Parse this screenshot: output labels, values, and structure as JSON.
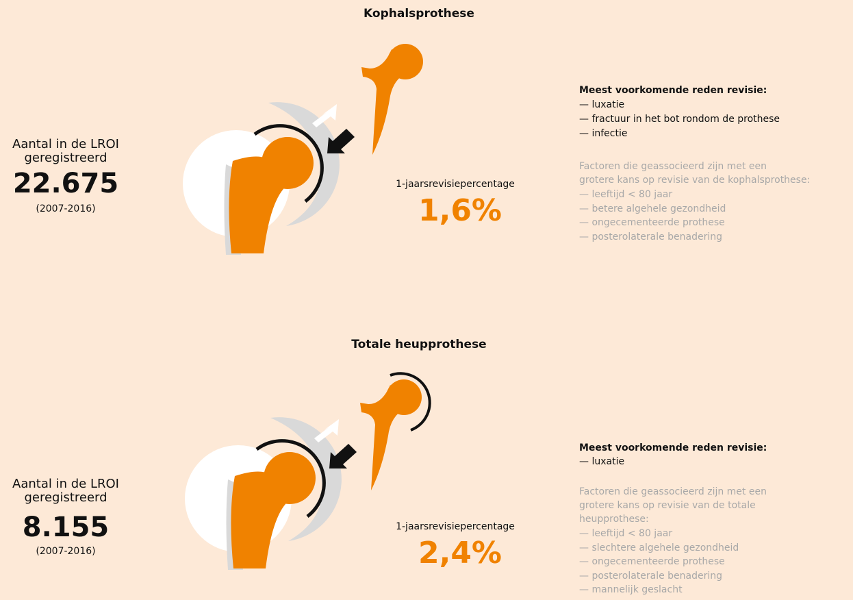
{
  "sections": [
    {
      "title": "Kophalsprothese",
      "count_label": [
        "Aantal in de LROI",
        "geregistreerd"
      ],
      "count": "22.675",
      "period": "(2007-2016)",
      "rate_label": "1-jaarsrevisiepercentage",
      "rate": "1,6%",
      "reasons_title": "Meest voorkomende reden revisie:",
      "reasons": [
        "— luxatie",
        "— fractuur in het bot rondom de prothese",
        "— infectie"
      ],
      "factors_intro": [
        "Factoren die geassocieerd zijn met een",
        "grotere kans op revisie van de kophalsprothese:"
      ],
      "factors": [
        "— leeftijd < 80 jaar",
        "— betere algehele gezondheid",
        "— ongecementeerde prothese",
        "— posterolaterale benadering"
      ]
    },
    {
      "title": "Totale heupprothese",
      "count_label": [
        "Aantal in de LROI",
        "geregistreerd"
      ],
      "count": "8.155",
      "period": "(2007-2016)",
      "rate_label": "1-jaarsrevisiepercentage",
      "rate": "2,4%",
      "reasons_title": "Meest voorkomende reden revisie:",
      "reasons": [
        "— luxatie"
      ],
      "factors_intro": [
        "Factoren die geassocieerd zijn met een",
        "grotere kans op revisie van de totale",
        "heupprothese:"
      ],
      "factors": [
        "— leeftijd < 80 jaar",
        "— slechtere algehele gezondheid",
        "— ongecementeerde prothese",
        "— posterolaterale benadering",
        "— mannelijk geslacht"
      ]
    }
  ]
}
